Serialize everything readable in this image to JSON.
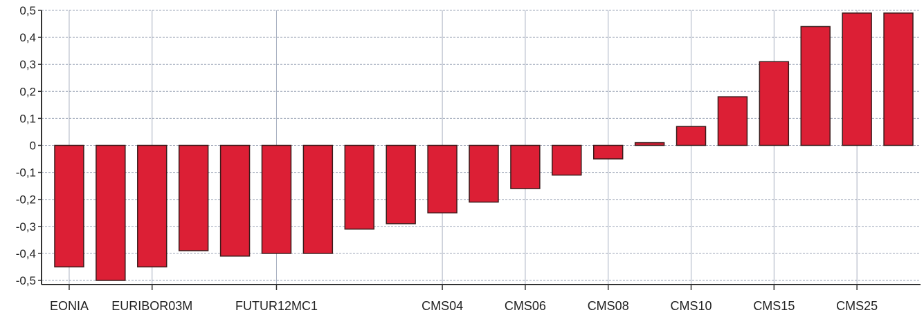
{
  "chart_data": {
    "type": "bar",
    "title": "",
    "xlabel": "",
    "ylabel": "",
    "ylim": [
      -0.5,
      0.5
    ],
    "y_ticks": [
      "0,5",
      "0,4",
      "0,3",
      "0,2",
      "0,1",
      "0",
      "-0,1",
      "-0,2",
      "-0,3",
      "-0,4",
      "-0,5"
    ],
    "grid": true,
    "legend": "none",
    "bar_color": "#dc1f35",
    "categories": [
      "EONIA",
      "",
      "EURIBOR03M",
      "",
      "",
      "FUTUR12MC1",
      "",
      "",
      "",
      "CMS04",
      "",
      "CMS06",
      "",
      "CMS08",
      "",
      "CMS10",
      "",
      "CMS15",
      "",
      "CMS25",
      ""
    ],
    "values": [
      -0.45,
      -0.5,
      -0.45,
      -0.39,
      -0.41,
      -0.4,
      -0.4,
      -0.31,
      -0.29,
      -0.25,
      -0.21,
      -0.16,
      -0.11,
      -0.05,
      0.01,
      0.07,
      0.18,
      0.31,
      0.44,
      0.49,
      0.49
    ]
  }
}
